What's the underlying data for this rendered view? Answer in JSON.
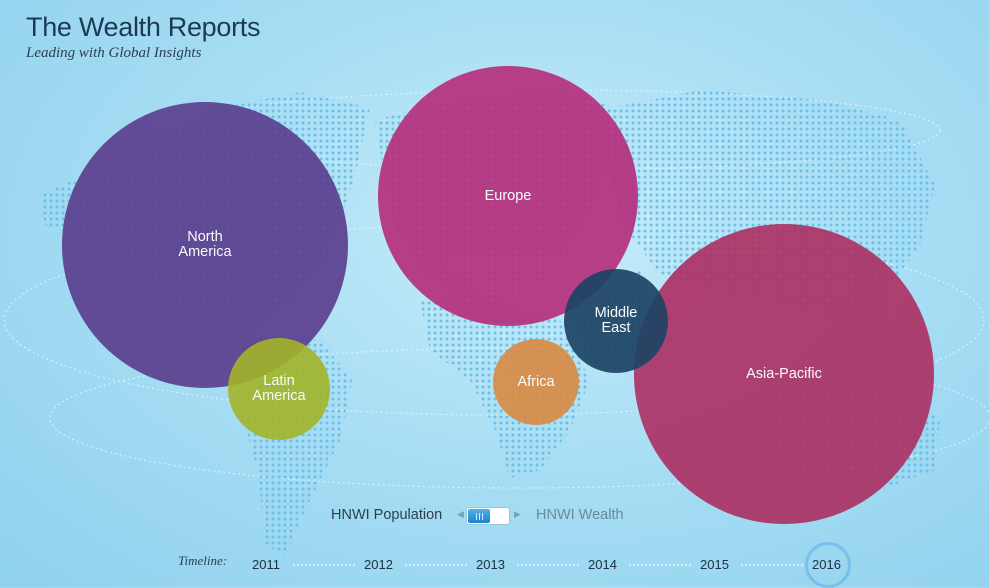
{
  "header": {
    "title": "The Wealth Reports",
    "subtitle": "Leading with Global Insights"
  },
  "regions": [
    {
      "id": "north-america",
      "label": "North\nAmerica",
      "color": "#5b3f8e"
    },
    {
      "id": "europe",
      "label": "Europe",
      "color": "#b5307d"
    },
    {
      "id": "latin-america",
      "label": "Latin\nAmerica",
      "color": "#a3b52a"
    },
    {
      "id": "africa",
      "label": "Africa",
      "color": "#d88c46"
    },
    {
      "id": "middle-east",
      "label": "Middle\nEast",
      "color": "#1e4465"
    },
    {
      "id": "asia-pacific",
      "label": "Asia-Pacific",
      "color": "#ac2f62"
    }
  ],
  "toggle": {
    "left_label": "HNWI Population",
    "right_label": "HNWI Wealth",
    "selected": "HNWI Population"
  },
  "timeline": {
    "label": "Timeline:",
    "years": [
      "2011",
      "2012",
      "2013",
      "2014",
      "2015",
      "2016"
    ],
    "selected": "2016"
  }
}
